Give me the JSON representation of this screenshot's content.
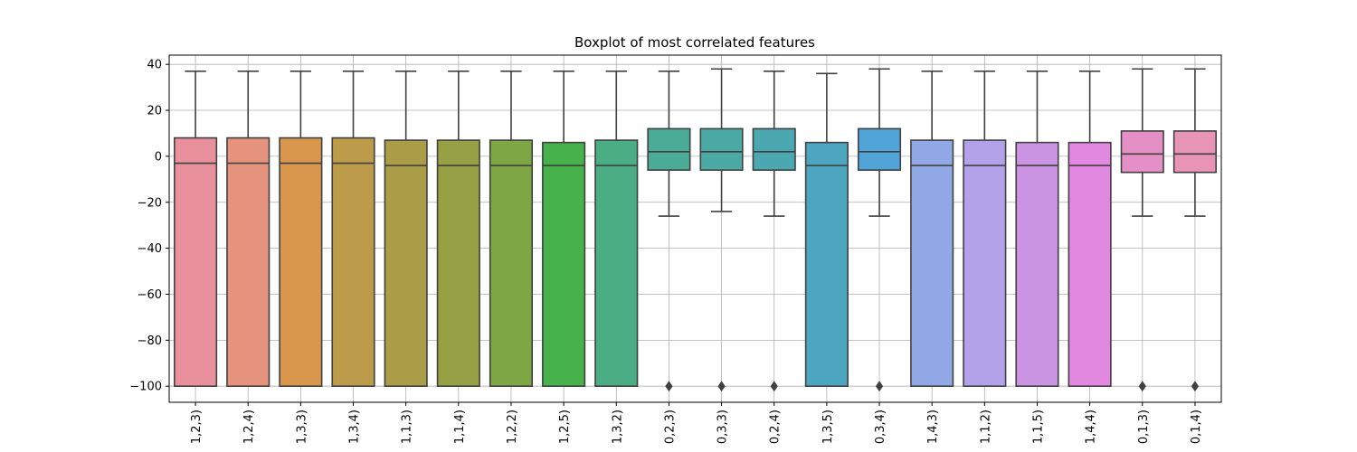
{
  "chart_data": {
    "type": "boxplot",
    "title": "Boxplot of most correlated features",
    "xlabel": "",
    "ylabel": "",
    "ylim": [
      -107,
      44
    ],
    "yticks": [
      40,
      20,
      0,
      -20,
      -40,
      -60,
      -80,
      -100
    ],
    "ytick_labels": [
      "40",
      "20",
      "0",
      "−20",
      "−40",
      "−60",
      "−80",
      "−100"
    ],
    "grid": true,
    "categories": [
      "1,2,3)",
      "1,2,4)",
      "1,3,3)",
      "1,3,4)",
      "1,1,3)",
      "1,1,4)",
      "1,2,2)",
      "1,2,5)",
      "1,3,2)",
      "0,2,3)",
      "0,3,3)",
      "0,2,4)",
      "1,3,5)",
      "0,3,4)",
      "1,4,3)",
      "1,1,2)",
      "1,1,5)",
      "1,4,4)",
      "0,1,3)",
      "0,1,4)"
    ],
    "boxes": [
      {
        "whisker_low": -100,
        "q1": -100,
        "median": -3,
        "q3": 8,
        "whisker_high": 37,
        "outliers": [],
        "color": "#e8919c"
      },
      {
        "whisker_low": -100,
        "q1": -100,
        "median": -3,
        "q3": 8,
        "whisker_high": 37,
        "outliers": [],
        "color": "#e5937d"
      },
      {
        "whisker_low": -100,
        "q1": -100,
        "median": -3,
        "q3": 8,
        "whisker_high": 37,
        "outliers": [],
        "color": "#d8974d"
      },
      {
        "whisker_low": -100,
        "q1": -100,
        "median": -3,
        "q3": 8,
        "whisker_high": 37,
        "outliers": [],
        "color": "#bc9b4a"
      },
      {
        "whisker_low": -100,
        "q1": -100,
        "median": -4,
        "q3": 7,
        "whisker_high": 37,
        "outliers": [],
        "color": "#ab9d47"
      },
      {
        "whisker_low": -100,
        "q1": -100,
        "median": -4,
        "q3": 7,
        "whisker_high": 37,
        "outliers": [],
        "color": "#98a046"
      },
      {
        "whisker_low": -100,
        "q1": -100,
        "median": -4,
        "q3": 7,
        "whisker_high": 37,
        "outliers": [],
        "color": "#7ea644"
      },
      {
        "whisker_low": -100,
        "q1": -100,
        "median": -4,
        "q3": 6,
        "whisker_high": 37,
        "outliers": [],
        "color": "#46b24b"
      },
      {
        "whisker_low": -100,
        "q1": -100,
        "median": -4,
        "q3": 7,
        "whisker_high": 37,
        "outliers": [],
        "color": "#4aad83"
      },
      {
        "whisker_low": -26,
        "q1": -6,
        "median": 2,
        "q3": 12,
        "whisker_high": 37,
        "outliers": [
          -100
        ],
        "color": "#4aab97"
      },
      {
        "whisker_low": -24,
        "q1": -6,
        "median": 2,
        "q3": 12,
        "whisker_high": 38,
        "outliers": [
          -100
        ],
        "color": "#4baaa5"
      },
      {
        "whisker_low": -26,
        "q1": -6,
        "median": 2,
        "q3": 12,
        "whisker_high": 37,
        "outliers": [
          -100
        ],
        "color": "#4ca8b0"
      },
      {
        "whisker_low": -100,
        "q1": -100,
        "median": -4,
        "q3": 6,
        "whisker_high": 36,
        "outliers": [],
        "color": "#4da6bf"
      },
      {
        "whisker_low": -26,
        "q1": -6,
        "median": 2,
        "q3": 12,
        "whisker_high": 38,
        "outliers": [
          -100
        ],
        "color": "#51a4d8"
      },
      {
        "whisker_low": -100,
        "q1": -100,
        "median": -4,
        "q3": 7,
        "whisker_high": 37,
        "outliers": [],
        "color": "#90a9e6"
      },
      {
        "whisker_low": -100,
        "q1": -100,
        "median": -4,
        "q3": 7,
        "whisker_high": 37,
        "outliers": [],
        "color": "#b3a2e9"
      },
      {
        "whisker_low": -100,
        "q1": -100,
        "median": -4,
        "q3": 6,
        "whisker_high": 37,
        "outliers": [],
        "color": "#cb94e3"
      },
      {
        "whisker_low": -100,
        "q1": -100,
        "median": -4,
        "q3": 6,
        "whisker_high": 37,
        "outliers": [],
        "color": "#e388e0"
      },
      {
        "whisker_low": -26,
        "q1": -7,
        "median": 1,
        "q3": 11,
        "whisker_high": 38,
        "outliers": [
          -100
        ],
        "color": "#e48fc6"
      },
      {
        "whisker_low": -26,
        "q1": -7,
        "median": 1,
        "q3": 11,
        "whisker_high": 38,
        "outliers": [
          -100
        ],
        "color": "#e794b6"
      }
    ]
  }
}
